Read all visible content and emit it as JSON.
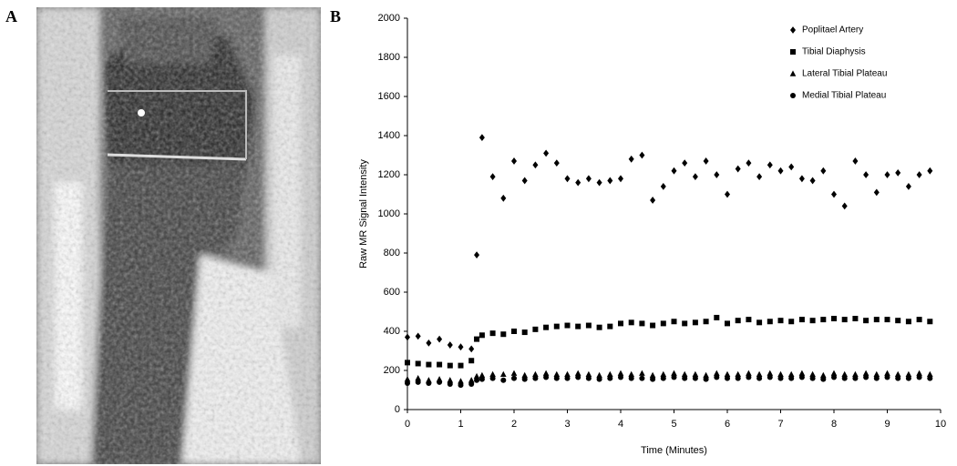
{
  "panel_labels": [
    "A",
    "B"
  ],
  "chart_data": {
    "type": "scatter",
    "xlabel": "Time (Minutes)",
    "ylabel": "Raw MR Signal Intensity",
    "xlim": [
      0,
      10
    ],
    "ylim": [
      0,
      2000
    ],
    "xticks": [
      0,
      1,
      2,
      3,
      4,
      5,
      6,
      7,
      8,
      9,
      10
    ],
    "yticks": [
      0,
      200,
      400,
      600,
      800,
      1000,
      1200,
      1400,
      1600,
      1800,
      2000
    ],
    "legend": "top-right",
    "x": [
      0,
      0.2,
      0.4,
      0.6,
      0.8,
      1.0,
      1.2,
      1.3,
      1.4,
      1.6,
      1.8,
      2.0,
      2.2,
      2.4,
      2.6,
      2.8,
      3.0,
      3.2,
      3.4,
      3.6,
      3.8,
      4.0,
      4.2,
      4.4,
      4.6,
      4.8,
      5.0,
      5.2,
      5.4,
      5.6,
      5.8,
      6.0,
      6.2,
      6.4,
      6.6,
      6.8,
      7.0,
      7.2,
      7.4,
      7.6,
      7.8,
      8.0,
      8.2,
      8.4,
      8.6,
      8.8,
      9.0,
      9.2,
      9.4,
      9.6,
      9.8
    ],
    "series": [
      {
        "name": "Poplitael Artery",
        "color": "#000000",
        "marker": "diamond",
        "values": [
          370,
          375,
          340,
          360,
          330,
          320,
          310,
          790,
          1390,
          1190,
          1080,
          1270,
          1170,
          1250,
          1310,
          1260,
          1180,
          1160,
          1180,
          1160,
          1170,
          1180,
          1280,
          1300,
          1070,
          1140,
          1220,
          1260,
          1190,
          1270,
          1200,
          1100,
          1230,
          1260,
          1190,
          1250,
          1220,
          1240,
          1180,
          1170,
          1220,
          1100,
          1040,
          1270,
          1200,
          1110,
          1200,
          1210,
          1140,
          1200,
          1220
        ]
      },
      {
        "name": "Tibial Diaphysis",
        "color": "#000000",
        "marker": "square",
        "values": [
          240,
          235,
          230,
          230,
          225,
          225,
          250,
          360,
          380,
          390,
          385,
          400,
          395,
          410,
          420,
          425,
          430,
          425,
          430,
          420,
          425,
          440,
          445,
          440,
          430,
          440,
          450,
          440,
          445,
          450,
          470,
          440,
          455,
          460,
          445,
          450,
          455,
          450,
          460,
          455,
          460,
          465,
          460,
          465,
          455,
          460,
          460,
          455,
          450,
          460,
          450
        ]
      },
      {
        "name": "Lateral Tibial Plateau",
        "color": "#000000",
        "marker": "triangle",
        "values": [
          155,
          160,
          150,
          155,
          150,
          145,
          150,
          170,
          175,
          180,
          180,
          185,
          175,
          180,
          185,
          180,
          180,
          185,
          180,
          175,
          180,
          185,
          180,
          185,
          175,
          180,
          185,
          180,
          180,
          175,
          185,
          180,
          180,
          185,
          180,
          185,
          180,
          180,
          185,
          180,
          175,
          185,
          180,
          180,
          185,
          180,
          185,
          180,
          180,
          185,
          180
        ]
      },
      {
        "name": "Medial Tibial Plateau",
        "color": "#000000",
        "marker": "circle",
        "values": [
          135,
          140,
          135,
          140,
          130,
          125,
          130,
          150,
          155,
          160,
          150,
          160,
          155,
          160,
          165,
          160,
          160,
          165,
          160,
          155,
          160,
          165,
          160,
          160,
          155,
          160,
          165,
          160,
          160,
          155,
          165,
          160,
          160,
          165,
          160,
          165,
          160,
          160,
          165,
          160,
          155,
          165,
          160,
          160,
          165,
          160,
          165,
          160,
          160,
          165,
          160
        ]
      }
    ]
  }
}
